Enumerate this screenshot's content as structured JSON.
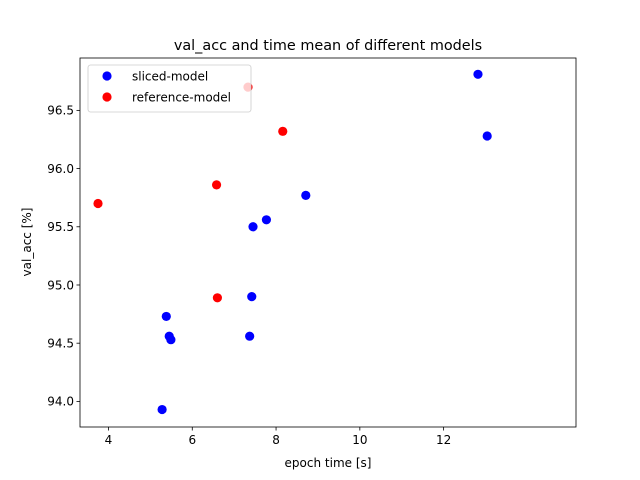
{
  "chart_data": {
    "type": "scatter",
    "title": "val_acc and time mean of different models",
    "xlabel": "epoch time [s]",
    "ylabel": "val_acc [%]",
    "xlim": [
      3.32,
      15.16
    ],
    "ylim": [
      93.78,
      96.95
    ],
    "xticks": [
      4,
      6,
      8,
      10,
      12
    ],
    "xtick_labels": [
      "4",
      "6",
      "8",
      "10",
      "12"
    ],
    "yticks": [
      94.0,
      94.5,
      95.0,
      95.5,
      96.0,
      96.5
    ],
    "ytick_labels": [
      "94.0",
      "94.5",
      "95.0",
      "95.5",
      "96.0",
      "96.5"
    ],
    "grid": false,
    "legend_position": "top-left",
    "series": [
      {
        "name": "sliced-model",
        "color": "#0000ff",
        "points": [
          {
            "x": 12.82,
            "y": 96.81
          },
          {
            "x": 13.04,
            "y": 96.28
          },
          {
            "x": 8.71,
            "y": 95.77
          },
          {
            "x": 7.77,
            "y": 95.56
          },
          {
            "x": 7.45,
            "y": 95.5
          },
          {
            "x": 7.42,
            "y": 94.9
          },
          {
            "x": 5.38,
            "y": 94.73
          },
          {
            "x": 5.45,
            "y": 94.56
          },
          {
            "x": 5.49,
            "y": 94.53
          },
          {
            "x": 7.37,
            "y": 94.56
          },
          {
            "x": 5.28,
            "y": 93.93
          }
        ]
      },
      {
        "name": "reference-model",
        "color": "#ff0000",
        "points": [
          {
            "x": 7.33,
            "y": 96.7
          },
          {
            "x": 8.16,
            "y": 96.32
          },
          {
            "x": 6.58,
            "y": 95.86
          },
          {
            "x": 3.75,
            "y": 95.7
          },
          {
            "x": 6.6,
            "y": 94.89
          }
        ]
      }
    ]
  }
}
